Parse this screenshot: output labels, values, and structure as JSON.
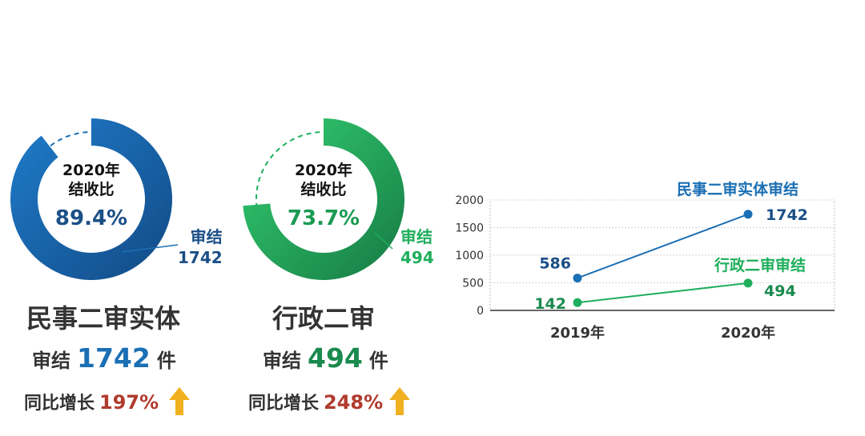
{
  "colors": {
    "civil_blue": "#1b6fb4",
    "civil_blue_dark": "#124a85",
    "admin_green": "#1fae5c",
    "admin_green_dark": "#167a43",
    "growth_red": "#b03a2e",
    "arrow_gold": "#f0b020"
  },
  "donut_civil": {
    "line1": "2020年",
    "line2": "结收比",
    "percent_text": "89.4%",
    "ratio": 0.894,
    "label_line1": "审结",
    "label_line2": "1742"
  },
  "donut_admin": {
    "line1": "2020年",
    "line2": "结收比",
    "percent_text": "73.7%",
    "ratio": 0.737,
    "label_line1": "审结",
    "label_line2": "494"
  },
  "civil": {
    "title": "民事二审实体",
    "stat_prefix": "审结",
    "stat_value": "1742",
    "stat_unit": "件",
    "growth_label": "同比增长",
    "growth_value": "197%",
    "arrow_icon": "up-arrow-icon"
  },
  "admin": {
    "title": "行政二审",
    "stat_prefix": "审结",
    "stat_value": "494",
    "stat_unit": "件",
    "growth_label": "同比增长",
    "growth_value": "248%",
    "arrow_icon": "up-arrow-icon"
  },
  "chart_data": {
    "type": "line",
    "x": [
      "2019年",
      "2020年"
    ],
    "ylim": [
      0,
      2000
    ],
    "yticks": [
      "0",
      "500",
      "1000",
      "1500",
      "2000"
    ],
    "series": [
      {
        "name": "民事二审实体审结",
        "values": [
          586,
          1742
        ],
        "labels": [
          "586",
          "1742"
        ],
        "color": "#1b6fb4"
      },
      {
        "name": "行政二审审结",
        "values": [
          142,
          494
        ],
        "labels": [
          "142",
          "494"
        ],
        "color": "#1fae5c"
      }
    ],
    "grid": true,
    "legend": "inline labels above lines"
  }
}
